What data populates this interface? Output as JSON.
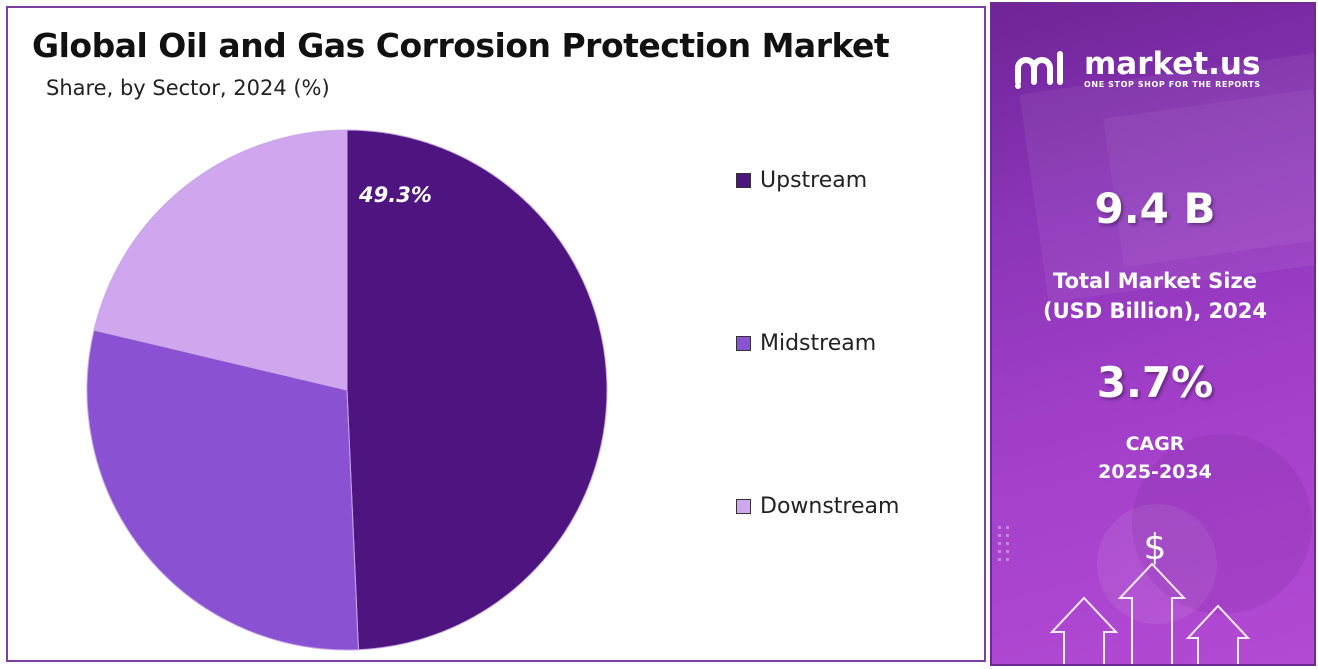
{
  "chart_data": {
    "type": "pie",
    "title": "Global Oil and Gas Corrosion Protection Market",
    "subtitle": "Share, by Sector, 2024 (%)",
    "categories": [
      "Upstream",
      "Midstream",
      "Downstream"
    ],
    "values": [
      49.3,
      29.4,
      21.3
    ],
    "data_labels": [
      "49.3%",
      "",
      ""
    ],
    "colors": [
      "#4e1580",
      "#8a52d2",
      "#d0a6ee"
    ],
    "legend_position": "right"
  },
  "info_panel": {
    "brand_name": "market.us",
    "brand_tagline": "ONE STOP SHOP FOR THE REPORTS",
    "market_size_value": "9.4 B",
    "market_size_label_line1": "Total Market Size",
    "market_size_label_line2": "(USD Billion), 2024",
    "cagr_value": "3.7%",
    "cagr_label_line1": "CAGR",
    "cagr_label_line2": "2025-2034",
    "currency_symbol": "$"
  }
}
